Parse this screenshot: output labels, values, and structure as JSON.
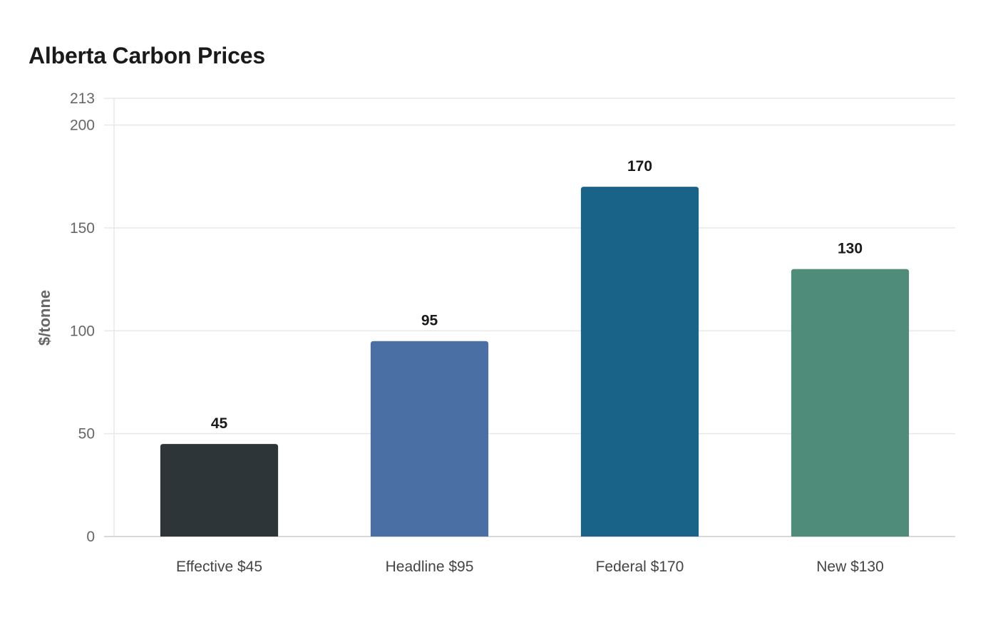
{
  "chart_data": {
    "type": "bar",
    "title": "Alberta Carbon Prices",
    "xlabel": "",
    "ylabel": "$/tonne",
    "categories": [
      "Effective $45",
      "Headline $95",
      "Federal $170",
      "New $130"
    ],
    "values": [
      45,
      95,
      170,
      130
    ],
    "value_labels": [
      "45",
      "95",
      "170",
      "130"
    ],
    "colors": [
      "#2e3538",
      "#4a6fa5",
      "#196288",
      "#4f8c7a"
    ],
    "ylim": [
      0,
      213
    ],
    "yticks": [
      0,
      50,
      100,
      150,
      200,
      213
    ],
    "ytick_labels": [
      "0",
      "50",
      "100",
      "150",
      "200",
      "213"
    ],
    "grid": true,
    "legend": "none"
  },
  "colors": {
    "grid": "#e8e8e8",
    "axis": "#cccccc"
  }
}
